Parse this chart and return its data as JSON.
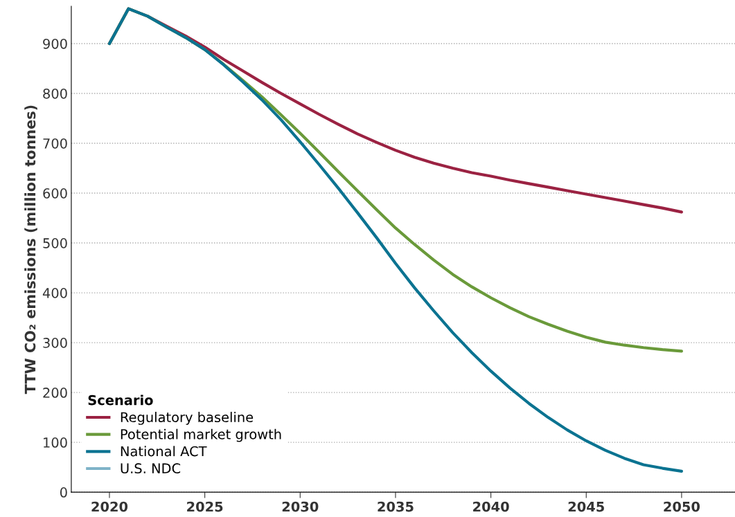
{
  "chart_data": {
    "type": "line",
    "ylabel": "TTW CO₂ emissions (million tonnes)",
    "legend_title": "Scenario",
    "legend": "bottom left",
    "grid": "y",
    "marker": "none",
    "line_style": "solid",
    "x": [
      2020,
      2021,
      2022,
      2023,
      2024,
      2025,
      2026,
      2027,
      2028,
      2029,
      2030,
      2031,
      2032,
      2033,
      2034,
      2035,
      2036,
      2037,
      2038,
      2039,
      2040,
      2041,
      2042,
      2043,
      2044,
      2045,
      2046,
      2047,
      2048,
      2049,
      2050
    ],
    "xlim": [
      2018,
      2052.8
    ],
    "xticks": [
      2020,
      2025,
      2030,
      2035,
      2040,
      2045,
      2050
    ],
    "ylim": [
      0,
      975
    ],
    "yticks": [
      0,
      100,
      200,
      300,
      400,
      500,
      600,
      700,
      800,
      900
    ],
    "series": [
      {
        "name": "Regulatory baseline",
        "color": "#9b2242",
        "values": [
          900,
          970,
          955,
          935,
          915,
          893,
          868,
          845,
          822,
          800,
          779,
          758,
          738,
          719,
          702,
          686,
          672,
          660,
          650,
          641,
          634,
          626,
          619,
          612,
          605,
          598,
          591,
          584,
          577,
          570,
          562
        ]
      },
      {
        "name": "Potential market growth",
        "color": "#6a9a3a",
        "values": [
          900,
          970,
          955,
          933,
          912,
          888,
          858,
          826,
          793,
          757,
          720,
          682,
          643,
          605,
          567,
          530,
          497,
          466,
          437,
          412,
          390,
          370,
          352,
          337,
          323,
          311,
          301,
          295,
          290,
          286,
          283
        ]
      },
      {
        "name": "National ACT",
        "color": "#0b7391",
        "values": [
          900,
          970,
          955,
          933,
          912,
          888,
          857,
          823,
          787,
          747,
          703,
          657,
          610,
          561,
          511,
          459,
          410,
          364,
          320,
          280,
          243,
          209,
          178,
          150,
          125,
          103,
          84,
          68,
          55,
          48,
          42
        ]
      },
      {
        "name": "U.S. NDC",
        "color": "#7fb3c8",
        "values": [
          null,
          null,
          null,
          null,
          null,
          null,
          null,
          null,
          null,
          null,
          null,
          null,
          null,
          null,
          null,
          null,
          null,
          null,
          null,
          null,
          null,
          null,
          null,
          null,
          null,
          null,
          null,
          null,
          null,
          null,
          null
        ]
      }
    ]
  }
}
